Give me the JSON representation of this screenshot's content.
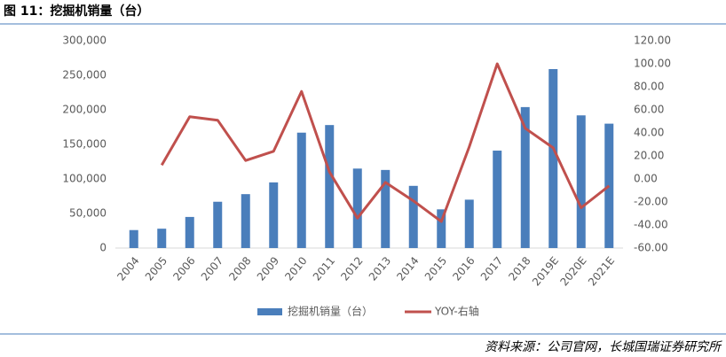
{
  "chart_data": {
    "type": "bar-line",
    "title": "图 11：挖掘机销量（台）",
    "source": "资料来源：公司官网，长城国瑞证券研究所",
    "categories": [
      "2004",
      "2005",
      "2006",
      "2007",
      "2008",
      "2009",
      "2010",
      "2011",
      "2012",
      "2013",
      "2014",
      "2015",
      "2016",
      "2017",
      "2018",
      "2019E",
      "2020E",
      "2021E"
    ],
    "series": [
      {
        "name": "挖掘机销量（台）",
        "type": "bar",
        "color": "#4a7ebb",
        "axis": "y",
        "values": [
          26000,
          28000,
          45000,
          67000,
          78000,
          95000,
          167000,
          178000,
          115000,
          113000,
          90000,
          56000,
          70000,
          141000,
          204000,
          259000,
          192000,
          180000
        ]
      },
      {
        "name": "YOY-右轴",
        "type": "line",
        "color": "#c0504d",
        "axis": "y2",
        "values": [
          null,
          12,
          54,
          51,
          16,
          24,
          76,
          6,
          -34,
          -3,
          -19,
          -37,
          28,
          100,
          44,
          27,
          -25,
          -6
        ]
      }
    ],
    "ylim": [
      0,
      300000
    ],
    "yticks": [
      0,
      {
        "value": 50000,
        "label": "50,000"
      },
      {
        "value": 100000,
        "label": "100,000"
      },
      {
        "value": 150000,
        "label": "150,000"
      },
      {
        "value": 200000,
        "label": "200,000"
      },
      {
        "value": 250000,
        "label": "250,000"
      },
      {
        "value": 300000,
        "label": "300,000"
      }
    ],
    "y2lim": [
      -60,
      120
    ],
    "y2ticks": [
      {
        "value": -60,
        "label": "-60.00"
      },
      {
        "value": -40,
        "label": "-40.00"
      },
      {
        "value": -20,
        "label": "-20.00"
      },
      {
        "value": 0,
        "label": "0.00"
      },
      {
        "value": 20,
        "label": "20.00"
      },
      {
        "value": 40,
        "label": "40.00"
      },
      {
        "value": 60,
        "label": "60.00"
      },
      {
        "value": 80,
        "label": "80.00"
      },
      {
        "value": 100,
        "label": "100.00"
      },
      {
        "value": 120,
        "label": "120.00"
      }
    ],
    "legend": "bottom"
  }
}
